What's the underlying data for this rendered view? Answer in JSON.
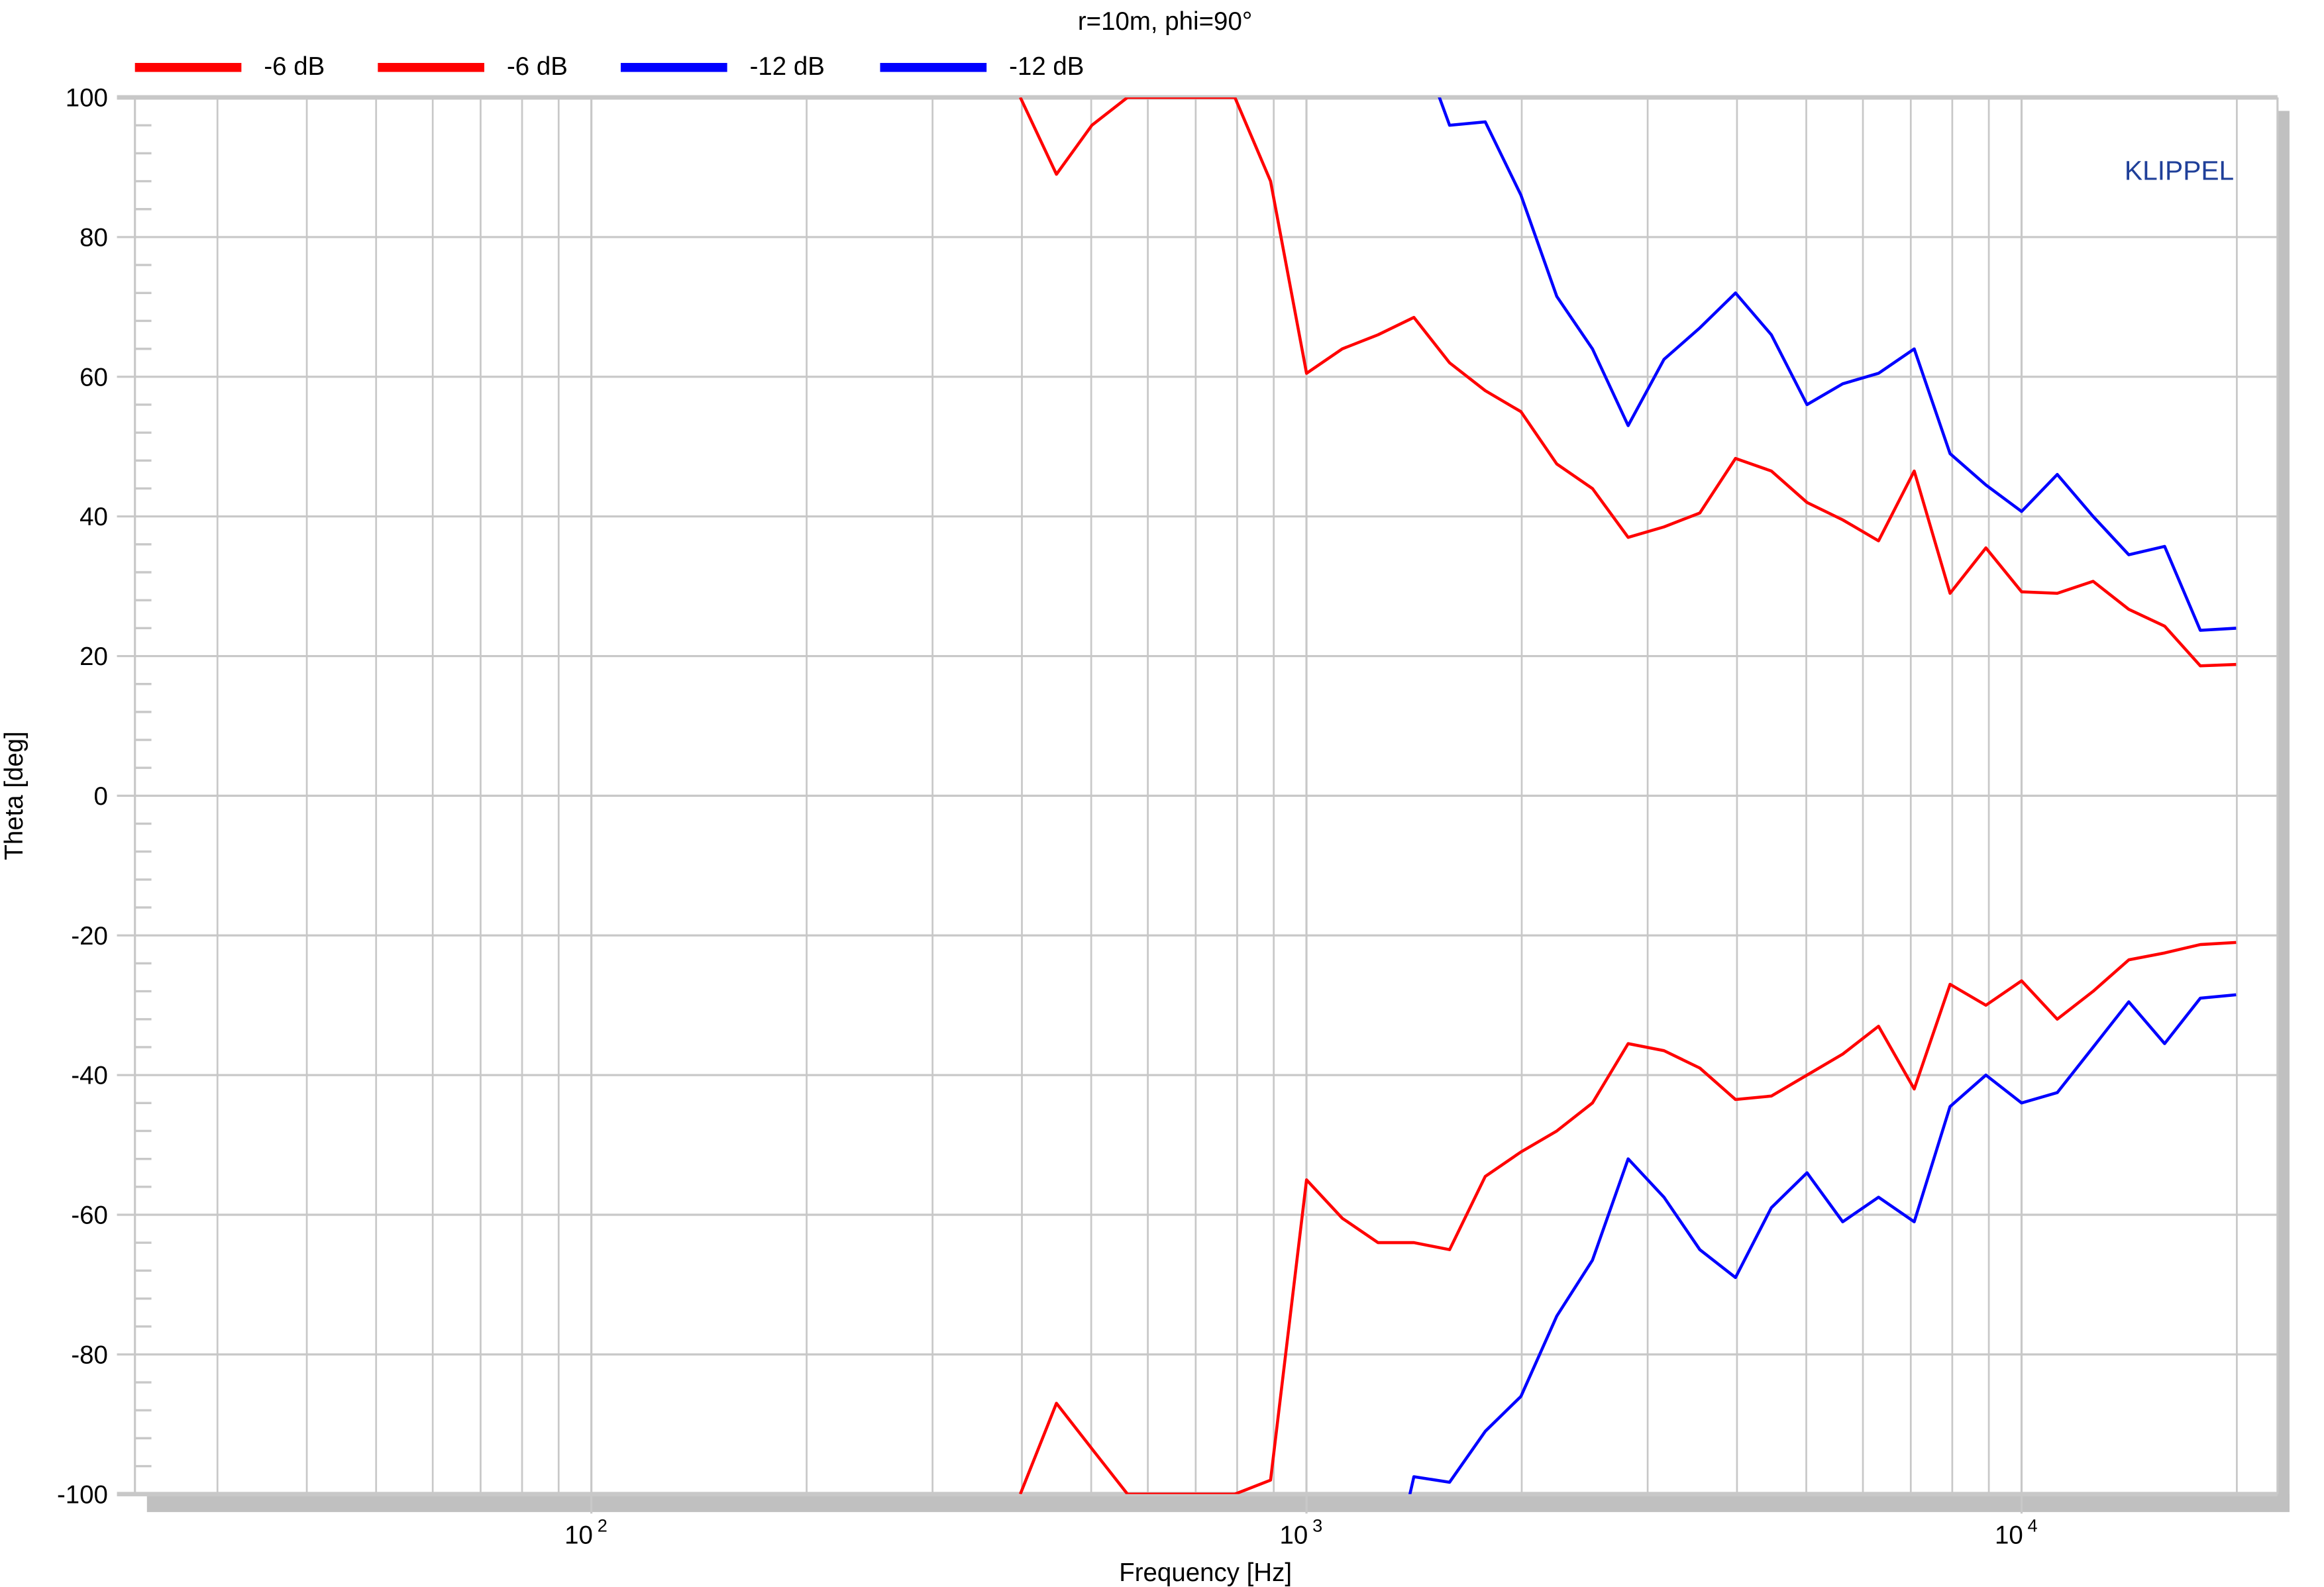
{
  "chart_data": {
    "type": "line",
    "title": "r=10m, phi=90°",
    "xlabel": "Frequency [Hz]",
    "ylabel": "Theta [deg]",
    "xscale": "log",
    "xlim": [
      23,
      22800
    ],
    "ylim": [
      -100,
      100
    ],
    "yticks": [
      "100",
      "80",
      "60",
      "40",
      "20",
      "0",
      "-20",
      "-40",
      "-60",
      "-80",
      "-100"
    ],
    "xticks": [
      {
        "base": "10",
        "exp": "2",
        "value": 100
      },
      {
        "base": "10",
        "exp": "3",
        "value": 1000
      },
      {
        "base": "10",
        "exp": "4",
        "value": 10000
      }
    ],
    "grid": true,
    "legend_position": "top-left",
    "watermark": "KLIPPEL",
    "colors": {
      "red": "#ff0000",
      "blue": "#0000ff",
      "grid": "#c8c8c8",
      "watermark": "#1f3f99"
    },
    "x": [
      398,
      447,
      501,
      562,
      631,
      708,
      794,
      891,
      1000,
      1122,
      1259,
      1413,
      1585,
      1778,
      1995,
      2239,
      2512,
      2818,
      3162,
      3548,
      3981,
      4467,
      5012,
      5623,
      6310,
      7079,
      7943,
      8913,
      10000,
      11220,
      12589,
      14125,
      15849,
      17783,
      19953
    ],
    "series": [
      {
        "name": "-6 dB",
        "color": "#ff0000",
        "values": [
          100,
          89,
          96,
          100,
          100,
          100,
          100,
          88,
          60.5,
          64,
          66,
          68.5,
          62,
          58,
          55,
          47.5,
          44,
          37,
          38.5,
          40.5,
          48.3,
          46.5,
          42,
          39.5,
          36.5,
          46.5,
          29,
          35.5,
          29.2,
          29,
          30.7,
          26.7,
          24.3,
          18.6,
          18.8
        ]
      },
      {
        "name": "-6 dB",
        "color": "#ff0000",
        "values": [
          -100,
          -87,
          -93.5,
          -100,
          -100,
          -100,
          -100,
          -98,
          -55,
          -60.5,
          -64,
          -64,
          -65,
          -54.5,
          -51,
          -48,
          -44,
          -35.5,
          -36.5,
          -39,
          -43.5,
          -43,
          -40,
          -37,
          -33,
          -42,
          -27,
          -30,
          -26.5,
          -32,
          -28,
          -23.5,
          -22.5,
          -21.3,
          -21
        ]
      },
      {
        "name": "-12 dB",
        "color": "#0000ff",
        "values": [
          null,
          null,
          null,
          null,
          null,
          null,
          null,
          null,
          null,
          null,
          null,
          110,
          96,
          96.5,
          86,
          71.5,
          64,
          53,
          62.5,
          67,
          72,
          66,
          56,
          59,
          60.5,
          64,
          49,
          44.5,
          40.7,
          46,
          40,
          34.5,
          35.7,
          23.7,
          24
        ]
      },
      {
        "name": "-12 dB",
        "color": "#0000ff",
        "values": [
          null,
          null,
          null,
          null,
          null,
          null,
          null,
          null,
          null,
          null,
          -120,
          -97.5,
          -98.3,
          -91,
          -86,
          -74.5,
          -66.5,
          -52,
          -57.5,
          -65,
          -69,
          -59,
          -54,
          -61,
          -57.5,
          -61,
          -44.5,
          -40,
          -44,
          -42.5,
          -36,
          -29.5,
          -35.5,
          -29,
          -28.5
        ]
      }
    ]
  }
}
